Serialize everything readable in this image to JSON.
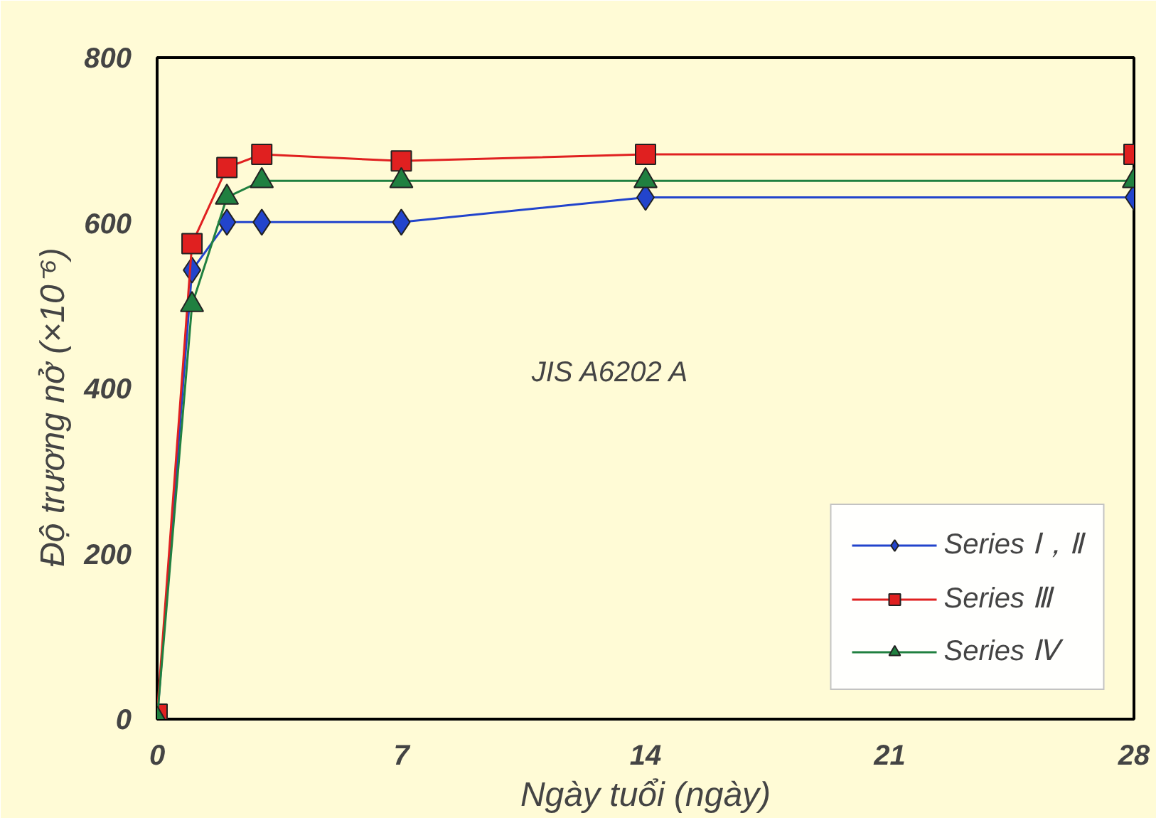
{
  "chart_data": {
    "type": "line",
    "xlabel": "Ngày tuổi (ngày)",
    "ylabel": "Độ trương nở     (×10⁻⁶)",
    "annotations": [
      "JIS A6202 A"
    ],
    "x": [
      0,
      1,
      2,
      3,
      7,
      14,
      28
    ],
    "xlim": [
      0,
      28
    ],
    "xticks": [
      0,
      7,
      14,
      21,
      28
    ],
    "ylim": [
      0,
      800
    ],
    "yticks": [
      0,
      200,
      400,
      600,
      800
    ],
    "grid": false,
    "legend": "bottom right",
    "line_style": "solid",
    "series": [
      {
        "name": "Series Ⅰ，Ⅱ",
        "color": "#2244cc",
        "marker": "diamond",
        "values": [
          0,
          543,
          601,
          601,
          601,
          631,
          631
        ]
      },
      {
        "name": "Series Ⅲ",
        "color": "#e02020",
        "marker": "square",
        "values": [
          6,
          575,
          667,
          683,
          675,
          683,
          683
        ]
      },
      {
        "name": "Series Ⅳ",
        "color": "#208040",
        "marker": "triangle",
        "values": [
          0,
          501,
          631,
          651,
          651,
          651,
          651
        ]
      }
    ]
  }
}
